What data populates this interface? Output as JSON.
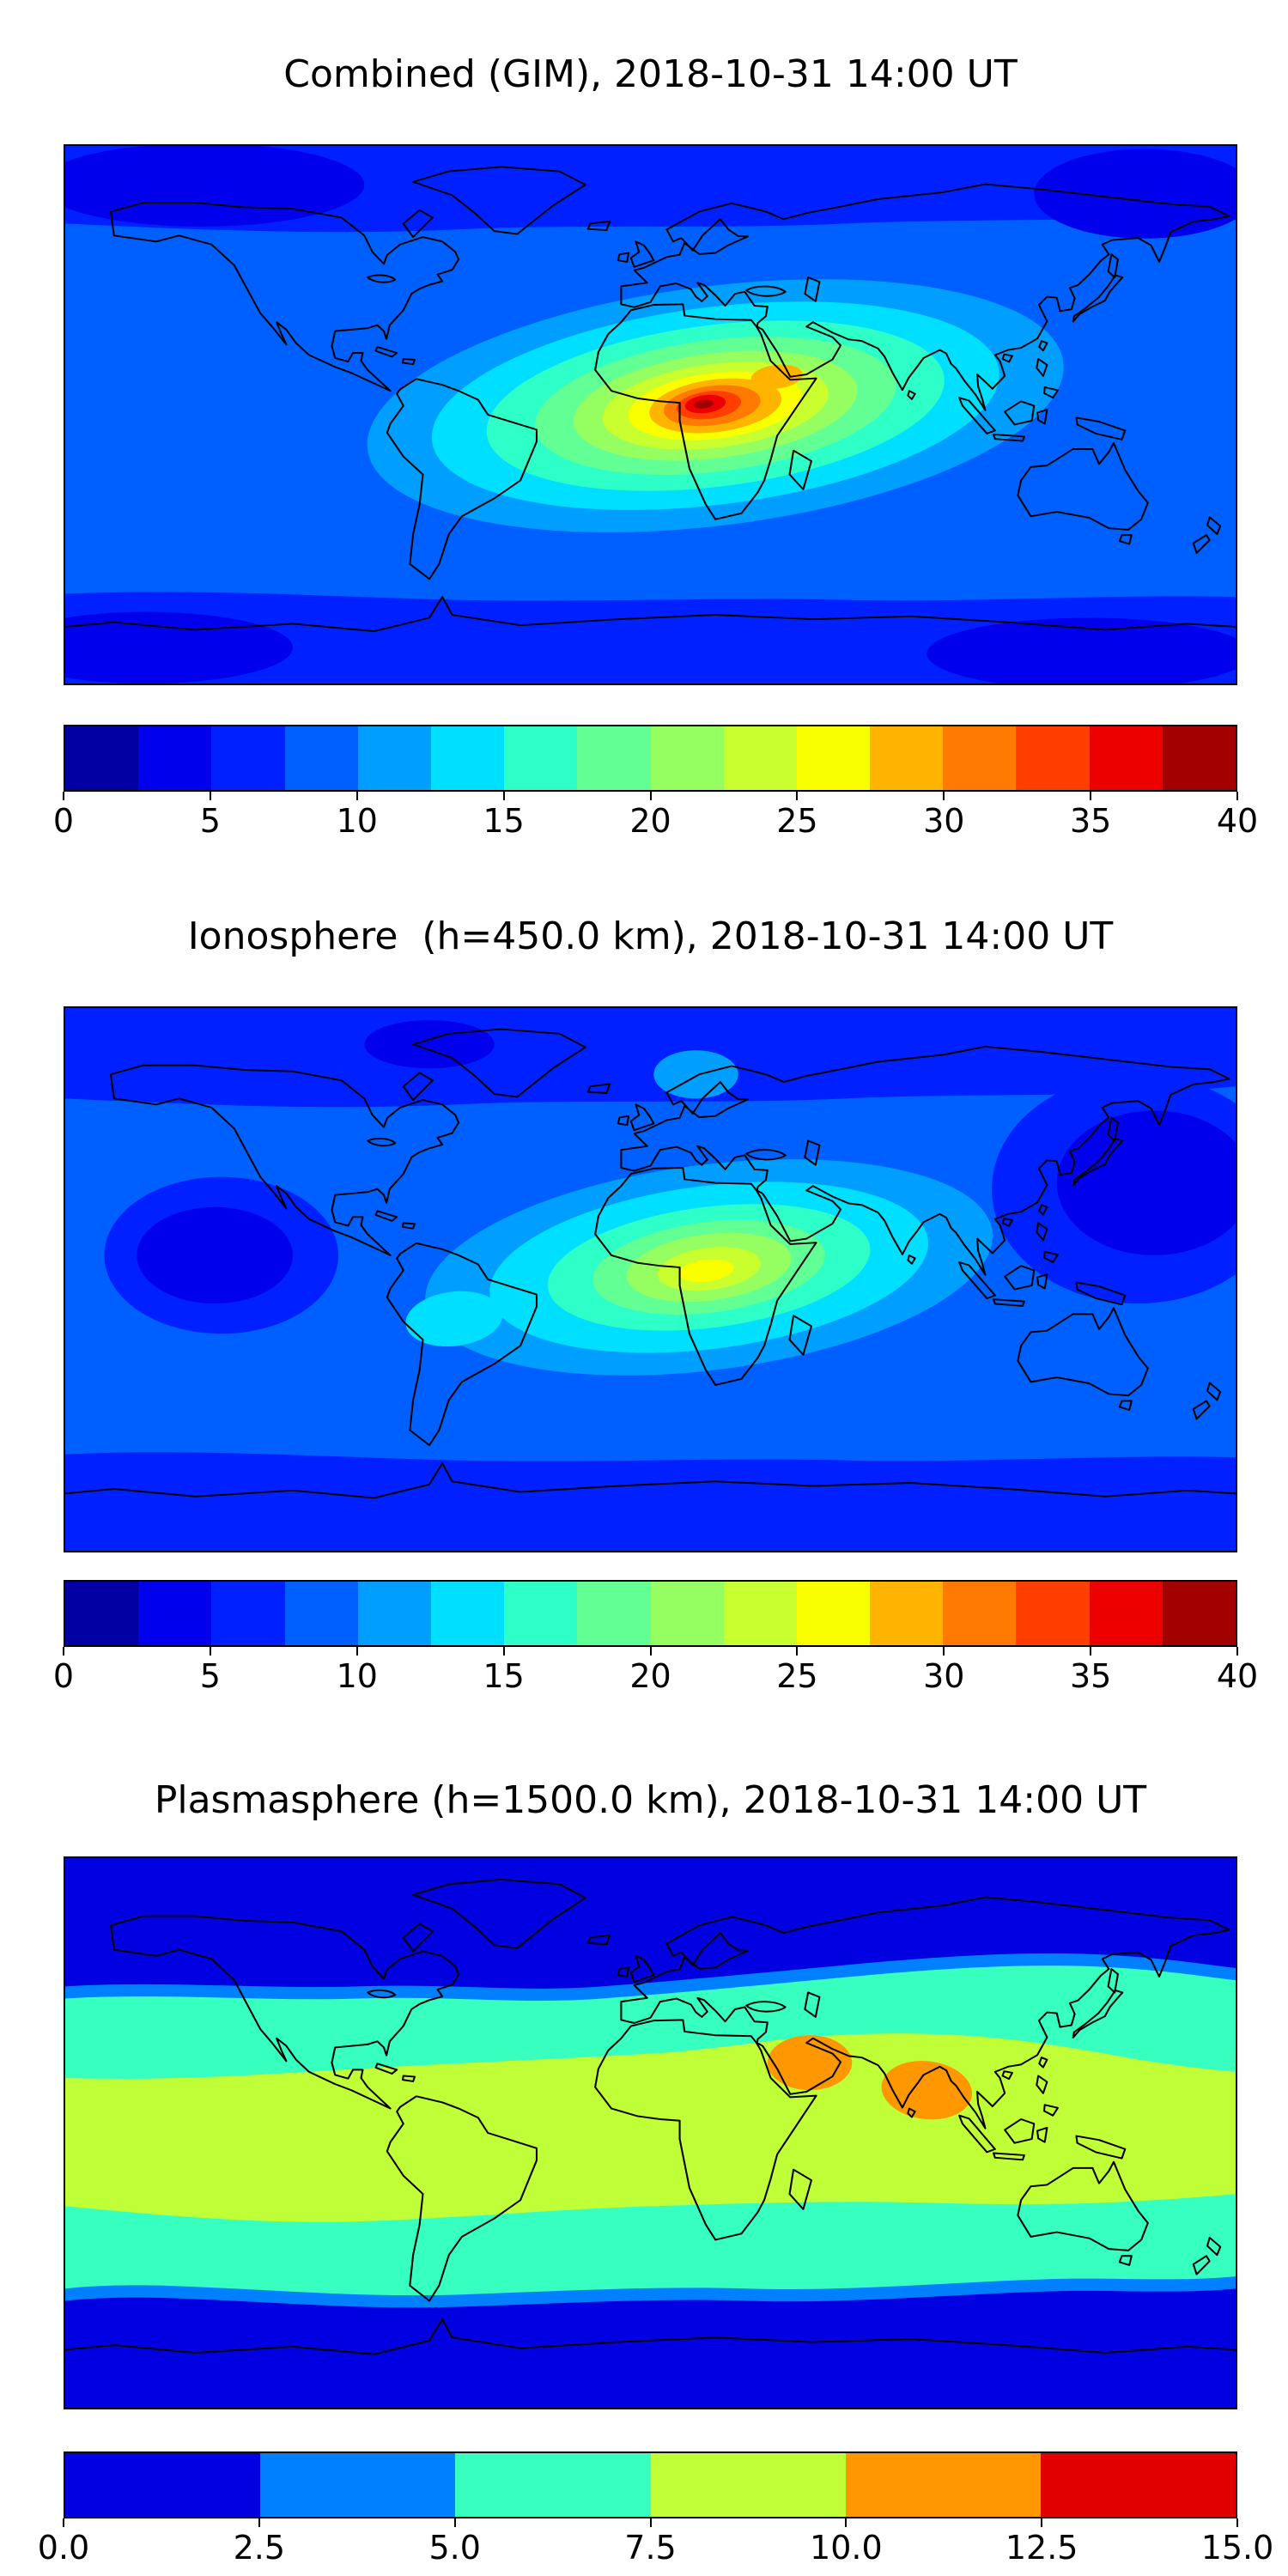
{
  "figure": {
    "background": "#ffffff",
    "coastline_color": "#000000"
  },
  "panels": [
    {
      "id": "combined",
      "title": "Combined (GIM), 2018-10-31 14:00 UT",
      "colorbar": {
        "min": 0,
        "max": 40,
        "ticks": [
          "0",
          "5",
          "10",
          "15",
          "20",
          "25",
          "30",
          "35",
          "40"
        ],
        "colors": [
          "#0000a3",
          "#0000ed",
          "#0020ff",
          "#0060ff",
          "#009fff",
          "#00dfff",
          "#2effc9",
          "#62ff95",
          "#95ff62",
          "#c9ff2e",
          "#faff00",
          "#ffb400",
          "#ff7a00",
          "#ff3e00",
          "#ec0000",
          "#a30000"
        ]
      }
    },
    {
      "id": "ionosphere",
      "title": "Ionosphere  (h=450.0 km), 2018-10-31 14:00 UT",
      "colorbar": {
        "min": 0,
        "max": 40,
        "ticks": [
          "0",
          "5",
          "10",
          "15",
          "20",
          "25",
          "30",
          "35",
          "40"
        ],
        "colors": [
          "#0000a3",
          "#0000ed",
          "#0020ff",
          "#0060ff",
          "#009fff",
          "#00dfff",
          "#2effc9",
          "#62ff95",
          "#95ff62",
          "#c9ff2e",
          "#faff00",
          "#ffb400",
          "#ff7a00",
          "#ff3e00",
          "#ec0000",
          "#a30000"
        ]
      }
    },
    {
      "id": "plasmasphere",
      "title": "Plasmasphere (h=1500.0 km), 2018-10-31 14:00 UT",
      "colorbar": {
        "min": 0,
        "max": 15,
        "ticks": [
          "0.0",
          "2.5",
          "5.0",
          "7.5",
          "10.0",
          "12.5",
          "15.0"
        ],
        "colors": [
          "#0000e0",
          "#0080ff",
          "#37ffc0",
          "#c0ff37",
          "#ff9700",
          "#e00000"
        ]
      }
    }
  ],
  "chart_data": [
    {
      "type": "heatmap",
      "title": "Combined (GIM), 2018-10-31 14:00 UT",
      "geometry": "equirectangular world map, lon -180..180, lat -90..90, coastlines overlaid",
      "colormap": "jet, discrete filled contours",
      "value_range": [
        0,
        40
      ],
      "contour_step": 2.5,
      "colorbar_ticks": [
        0,
        5,
        10,
        15,
        20,
        25,
        30,
        35,
        40
      ],
      "features": [
        {
          "name": "equatorial ionization peak",
          "lon_deg": 18,
          "lat_deg": 0,
          "value": 38
        },
        {
          "name": "secondary orange lobe toward Arabia",
          "lon_deg": 40,
          "lat_deg": 10,
          "value": 30
        },
        {
          "name": "broad cyan band South America to India",
          "value": 15
        },
        {
          "name": "ocean background",
          "value": 10
        },
        {
          "name": "minima North Pacific / NE Asia / Southern Ocean",
          "value": 4
        }
      ]
    },
    {
      "type": "heatmap",
      "title": "Ionosphere  (h=450.0 km), 2018-10-31 14:00 UT",
      "geometry": "equirectangular world map, lon -180..180, lat -90..90, coastlines overlaid",
      "colormap": "jet, discrete filled contours",
      "value_range": [
        0,
        40
      ],
      "contour_step": 2.5,
      "colorbar_ticks": [
        0,
        5,
        10,
        15,
        20,
        25,
        30,
        35,
        40
      ],
      "features": [
        {
          "name": "equatorial peak over central Africa",
          "lon_deg": 15,
          "lat_deg": 2,
          "value": 26
        },
        {
          "name": "light spot over Scandinavia",
          "lon_deg": 15,
          "lat_deg": 67,
          "value": 12
        },
        {
          "name": "minimum equatorial East Pacific",
          "lon_deg": -135,
          "lat_deg": -5,
          "value": 4
        },
        {
          "name": "minimum West Pacific",
          "lon_deg": 150,
          "lat_deg": 25,
          "value": 4
        },
        {
          "name": "ocean background",
          "value": 8
        }
      ]
    },
    {
      "type": "heatmap",
      "title": "Plasmasphere (h=1500.0 km), 2018-10-31 14:00 UT",
      "geometry": "equirectangular world map, lon -180..180, lat -90..90, coastlines overlaid",
      "colormap": "jet, discrete filled contours",
      "value_range": [
        0,
        15
      ],
      "contour_step": 2.5,
      "colorbar_ticks": [
        0,
        2.5,
        5,
        7.5,
        10,
        12.5,
        15
      ],
      "features": [
        {
          "name": "polar caps",
          "value": 2
        },
        {
          "name": "mid-latitude turquoise band",
          "value": 6
        },
        {
          "name": "equatorial yellow-green band",
          "value": 9
        },
        {
          "name": "peak over Arabian Peninsula",
          "lon_deg": 48,
          "lat_deg": 22,
          "value": 11
        },
        {
          "name": "peak over India / Bay of Bengal",
          "lon_deg": 85,
          "lat_deg": 13,
          "value": 11
        }
      ]
    }
  ]
}
